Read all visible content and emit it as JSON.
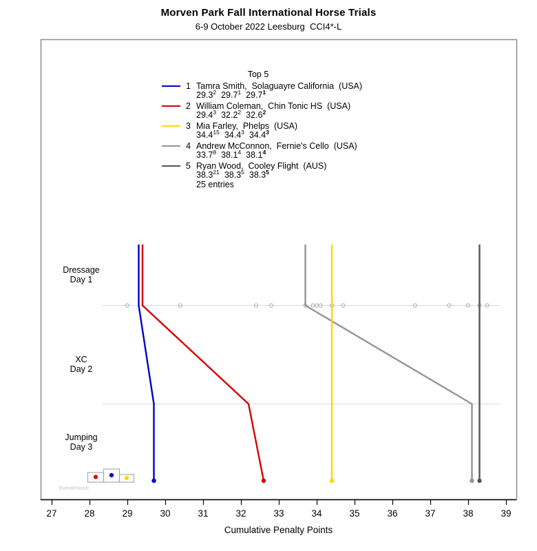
{
  "header": {
    "title": "Morven Park Fall International Horse Trials",
    "subtitle": "6-9 October 2022 Leesburg  CCI4*-L"
  },
  "legend": {
    "title": "Top 5",
    "note": "25 entries",
    "entries": [
      {
        "rank": "1",
        "rider": "Tamra Smith,  Solaguayre California  (USA)",
        "color": "#0000CC",
        "scores": [
          {
            "value": "29.3",
            "place": "2"
          },
          {
            "value": "29.7",
            "place": "1"
          },
          {
            "value": "29.7",
            "place": "1"
          }
        ]
      },
      {
        "rank": "2",
        "rider": "William Coleman,  Chin Tonic HS  (USA)",
        "color": "#D40000",
        "scores": [
          {
            "value": "29.4",
            "place": "3"
          },
          {
            "value": "32.2",
            "place": "2"
          },
          {
            "value": "32.6",
            "place": "2"
          }
        ]
      },
      {
        "rank": "3",
        "rider": "Mia Farley,  Phelps  (USA)",
        "color": "#FFD700",
        "scores": [
          {
            "value": "34.4",
            "place": "15"
          },
          {
            "value": "34.4",
            "place": "3"
          },
          {
            "value": "34.4",
            "place": "3"
          }
        ]
      },
      {
        "rank": "4",
        "rider": "Andrew McConnon,  Fernie's Cello  (USA)",
        "color": "#949494",
        "scores": [
          {
            "value": "33.7",
            "place": "8"
          },
          {
            "value": "38.1",
            "place": "4"
          },
          {
            "value": "38.1",
            "place": "4"
          }
        ]
      },
      {
        "rank": "5",
        "rider": "Ryan Wood,  Cooley Flight  (AUS)",
        "color": "#555555",
        "scores": [
          {
            "value": "38.3",
            "place": "21"
          },
          {
            "value": "38.3",
            "place": "5"
          },
          {
            "value": "38.3",
            "place": "5"
          }
        ]
      }
    ]
  },
  "chart_data": {
    "type": "line",
    "title": "Top 5",
    "xlabel": "Cumulative Penalty Points",
    "xlim": [
      27,
      39
    ],
    "x_ticks": [
      27,
      28,
      29,
      30,
      31,
      32,
      33,
      34,
      35,
      36,
      37,
      38,
      39
    ],
    "orientation": "phases run top-to-bottom, cumulative penalty points on x-axis",
    "phases": [
      {
        "label": "Dressage",
        "sublabel": "Day 1"
      },
      {
        "label": "XC",
        "sublabel": "Day 2"
      },
      {
        "label": "Jumping",
        "sublabel": "Day 3"
      }
    ],
    "series": [
      {
        "name": "Tamra Smith, Solaguayre California",
        "color": "#0000CC",
        "values": [
          29.3,
          29.7,
          29.7
        ]
      },
      {
        "name": "William Coleman, Chin Tonic HS",
        "color": "#D40000",
        "values": [
          29.4,
          32.2,
          32.6
        ]
      },
      {
        "name": "Mia Farley, Phelps",
        "color": "#FFD700",
        "values": [
          34.4,
          34.4,
          34.4
        ]
      },
      {
        "name": "Andrew McConnon, Fernie's Cello",
        "color": "#949494",
        "values": [
          33.7,
          38.1,
          38.1
        ]
      },
      {
        "name": "Ryan Wood, Cooley Flight",
        "color": "#555555",
        "values": [
          38.3,
          38.3,
          38.3
        ]
      }
    ],
    "field_dressage_scores": [
      29.0,
      30.4,
      32.4,
      32.8,
      33.7,
      33.9,
      34.0,
      34.1,
      34.4,
      34.7,
      36.6,
      37.5,
      38.0,
      38.3,
      38.5
    ],
    "legend_position": "top-center",
    "grid": "horizontal separators after Dressage and XC phases"
  },
  "podium_marker": {
    "first_color": "#0000CC",
    "second_color": "#D40000",
    "third_color": "#FFD700"
  },
  "watermark": "EventiPass®",
  "colors": {
    "frame": "#8C8C8C",
    "axis": "#000000",
    "grid": "#DBDBDB",
    "field_marker": "#A8B6C2",
    "podium_border": "#ABABAB"
  }
}
